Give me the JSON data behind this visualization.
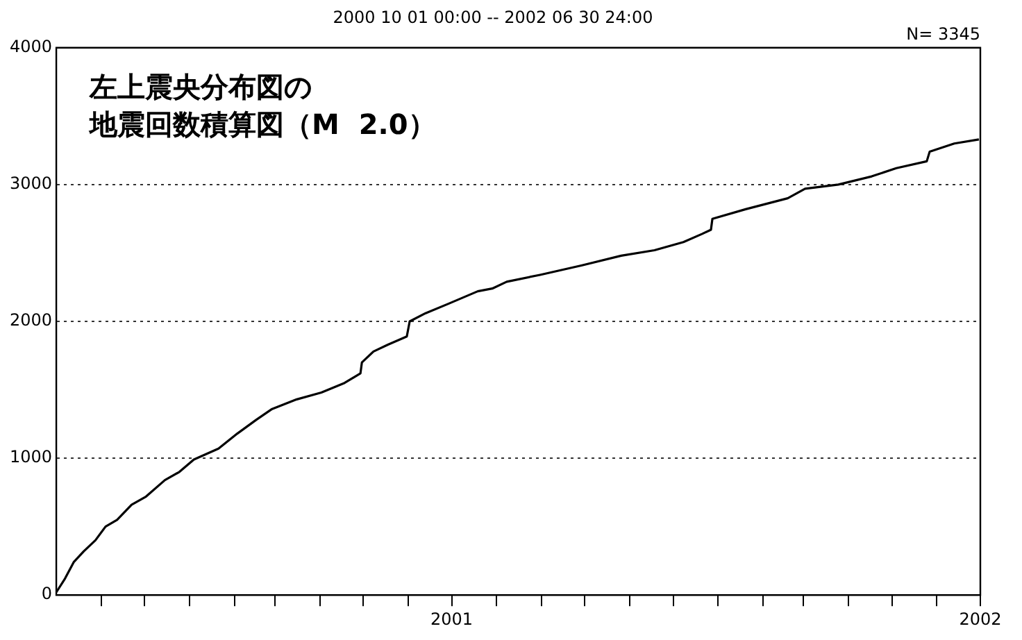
{
  "chart_data": {
    "type": "line",
    "title": "2000 10 01 00:00 -- 2002 06 30 24:00",
    "annotations": [
      "左上震央分布図の",
      "地震回数積算図（M  2.0）",
      "N= 3345"
    ],
    "x": [
      "2000-10-01",
      "2000-10-07",
      "2000-10-13",
      "2000-10-20",
      "2000-10-28",
      "2000-11-04",
      "2000-11-12",
      "2000-11-22",
      "2000-12-02",
      "2000-12-15",
      "2000-12-25",
      "2001-01-04",
      "2001-01-21",
      "2001-02-03",
      "2001-02-16",
      "2001-02-27",
      "2001-03-16",
      "2001-04-02",
      "2001-04-18",
      "2001-04-29",
      "2001-04-30",
      "2001-05-08",
      "2001-05-18",
      "2001-05-31",
      "2001-06-02",
      "2001-06-13",
      "2001-06-29",
      "2001-07-19",
      "2001-07-29",
      "2001-08-08",
      "2001-08-31",
      "2001-09-29",
      "2001-10-26",
      "2001-11-18",
      "2001-12-08",
      "2001-12-21",
      "2001-12-27",
      "2001-12-28",
      "2002-01-20",
      "2002-02-18",
      "2002-03-02",
      "2002-03-25",
      "2002-04-17",
      "2002-05-04",
      "2002-05-25",
      "2002-05-27",
      "2002-06-13",
      "2002-06-30"
    ],
    "series": [
      {
        "color": "#000000",
        "values": [
          20,
          120,
          240,
          320,
          400,
          500,
          550,
          660,
          720,
          840,
          900,
          990,
          1070,
          1180,
          1280,
          1360,
          1430,
          1480,
          1550,
          1620,
          1700,
          1780,
          1830,
          1890,
          2000,
          2060,
          2130,
          2220,
          2240,
          2290,
          2340,
          2410,
          2480,
          2520,
          2580,
          2640,
          2670,
          2750,
          2820,
          2900,
          2970,
          3000,
          3060,
          3120,
          3170,
          3240,
          3300,
          3330
        ]
      }
    ],
    "xlim": [
      "2000-10-01",
      "2002-07-01"
    ],
    "xticks": [
      {
        "value": "2000-11-01",
        "label": null
      },
      {
        "value": "2000-12-01",
        "label": null
      },
      {
        "value": "2001-01-01",
        "label": null
      },
      {
        "value": "2001-02-01",
        "label": null
      },
      {
        "value": "2001-03-01",
        "label": null
      },
      {
        "value": "2001-04-01",
        "label": null
      },
      {
        "value": "2001-05-01",
        "label": null
      },
      {
        "value": "2001-06-01",
        "label": null
      },
      {
        "value": "2001-07-01",
        "label": "2001"
      },
      {
        "value": "2001-08-01",
        "label": null
      },
      {
        "value": "2001-09-01",
        "label": null
      },
      {
        "value": "2001-10-01",
        "label": null
      },
      {
        "value": "2001-11-01",
        "label": null
      },
      {
        "value": "2001-12-01",
        "label": null
      },
      {
        "value": "2002-01-01",
        "label": null
      },
      {
        "value": "2002-02-01",
        "label": null
      },
      {
        "value": "2002-03-01",
        "label": null
      },
      {
        "value": "2002-04-01",
        "label": null
      },
      {
        "value": "2002-05-01",
        "label": null
      },
      {
        "value": "2002-06-01",
        "label": null
      },
      {
        "value": "2002-07-01",
        "label": "2002"
      }
    ],
    "ylim": [
      0,
      4000
    ],
    "yticks": [
      0,
      1000,
      2000,
      3000,
      4000
    ],
    "grid": "y",
    "legend": false,
    "marker": "none",
    "line_style": "solid"
  }
}
